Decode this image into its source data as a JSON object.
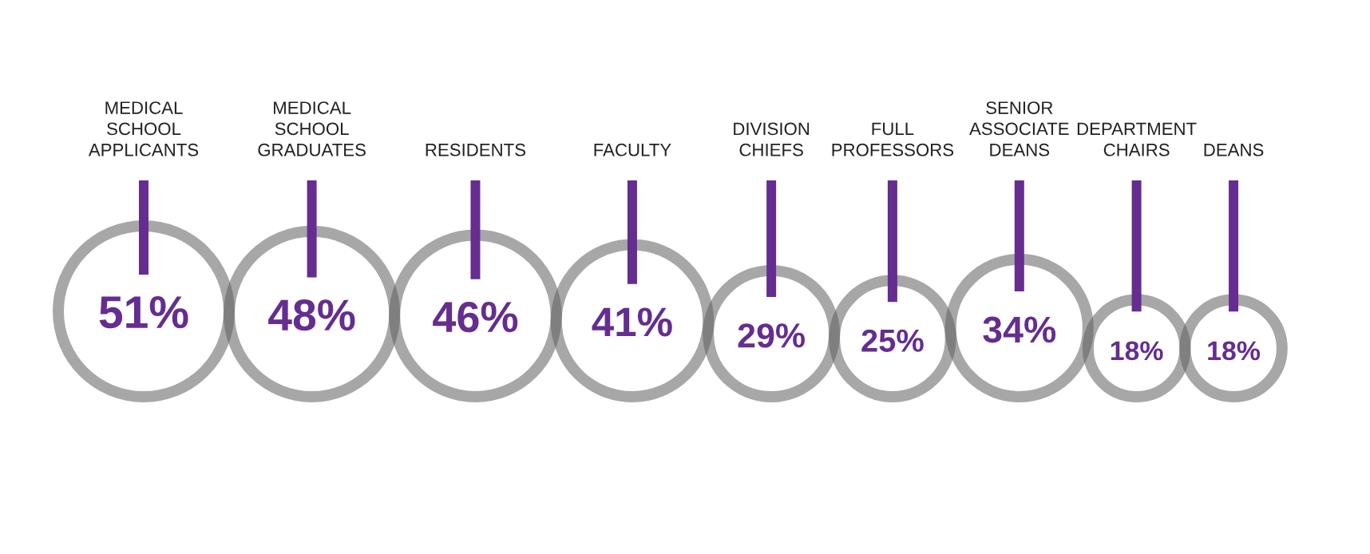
{
  "chart_data": {
    "type": "other",
    "categories": [
      "MEDICAL SCHOOL APPLICANTS",
      "MEDICAL SCHOOL GRADUATES",
      "RESIDENTS",
      "FACULTY",
      "DIVISION CHIEFS",
      "FULL PROFESSORS",
      "SENIOR ASSOCIATE DEANS",
      "DEPARTMENT CHAIRS",
      "DEANS"
    ],
    "series": [
      {
        "color": "#652d90",
        "values": [
          51,
          48,
          46,
          41,
          29,
          25,
          34,
          18,
          18
        ],
        "value_labels": [
          "51%",
          "48%",
          "46%",
          "41%",
          "29%",
          "25%",
          "34%",
          "18%",
          "18%"
        ]
      }
    ]
  }
}
